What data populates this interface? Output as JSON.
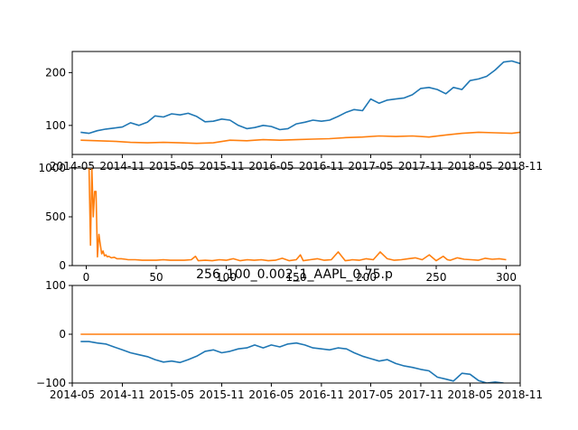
{
  "colors": {
    "series1": "#1f77b4",
    "series2": "#ff7f0e"
  },
  "chart_data": [
    {
      "type": "line",
      "x_type": "date",
      "xlim": [
        "2014-05-01",
        "2018-11-01"
      ],
      "ylim": [
        45,
        240
      ],
      "xticks": [
        "2014-05",
        "2014-11",
        "2015-05",
        "2015-11",
        "2016-05",
        "2016-11",
        "2017-05",
        "2017-11",
        "2018-05",
        "2018-11"
      ],
      "yticks": [
        100,
        200
      ],
      "grid": false,
      "series": [
        {
          "color": "#1f77b4",
          "x": [
            "2014-06-01",
            "2014-07-01",
            "2014-08-01",
            "2014-09-01",
            "2014-10-01",
            "2014-11-01",
            "2014-12-01",
            "2015-01-01",
            "2015-02-01",
            "2015-03-01",
            "2015-04-01",
            "2015-05-01",
            "2015-06-01",
            "2015-07-01",
            "2015-08-01",
            "2015-09-01",
            "2015-10-01",
            "2015-11-01",
            "2015-12-01",
            "2016-01-01",
            "2016-02-01",
            "2016-03-01",
            "2016-04-01",
            "2016-05-01",
            "2016-06-01",
            "2016-07-01",
            "2016-08-01",
            "2016-09-01",
            "2016-10-01",
            "2016-11-01",
            "2016-12-01",
            "2017-01-01",
            "2017-02-01",
            "2017-03-01",
            "2017-04-01",
            "2017-05-01",
            "2017-06-01",
            "2017-07-01",
            "2017-08-01",
            "2017-09-01",
            "2017-10-01",
            "2017-11-01",
            "2017-12-01",
            "2018-01-01",
            "2018-02-01",
            "2018-03-01",
            "2018-04-01",
            "2018-05-01",
            "2018-06-01",
            "2018-07-01",
            "2018-08-01",
            "2018-09-01",
            "2018-10-01",
            "2018-11-01"
          ],
          "y": [
            87,
            85,
            90,
            93,
            95,
            97,
            105,
            100,
            106,
            118,
            116,
            122,
            120,
            123,
            117,
            107,
            108,
            112,
            110,
            100,
            94,
            96,
            100,
            98,
            92,
            94,
            103,
            106,
            110,
            108,
            110,
            117,
            125,
            130,
            128,
            150,
            142,
            148,
            150,
            152,
            158,
            170,
            172,
            168,
            160,
            172,
            168,
            185,
            188,
            193,
            205,
            220,
            222,
            217
          ]
        },
        {
          "color": "#ff7f0e",
          "x": [
            "2014-06-01",
            "2014-08-01",
            "2014-10-01",
            "2014-12-01",
            "2015-02-01",
            "2015-04-01",
            "2015-06-01",
            "2015-08-01",
            "2015-10-01",
            "2015-12-01",
            "2016-02-01",
            "2016-04-01",
            "2016-06-01",
            "2016-08-01",
            "2016-10-01",
            "2016-12-01",
            "2017-02-01",
            "2017-04-01",
            "2017-06-01",
            "2017-08-01",
            "2017-10-01",
            "2017-12-01",
            "2018-02-01",
            "2018-04-01",
            "2018-06-01",
            "2018-08-01",
            "2018-10-01",
            "2018-11-01"
          ],
          "y": [
            72,
            71,
            70,
            68,
            67,
            68,
            67,
            66,
            67,
            72,
            71,
            73,
            72,
            73,
            74,
            75,
            77,
            78,
            80,
            79,
            80,
            78,
            82,
            85,
            87,
            86,
            85,
            87
          ]
        }
      ]
    },
    {
      "type": "line",
      "xlim": [
        -10,
        310
      ],
      "ylim": [
        0,
        1000
      ],
      "xticks": [
        0,
        50,
        100,
        150,
        200,
        250,
        300
      ],
      "yticks": [
        0,
        500,
        1000
      ],
      "grid": false,
      "series": [
        {
          "color": "#ff7f0e",
          "x": [
            0,
            1,
            2,
            3,
            4,
            5,
            6,
            7,
            8,
            9,
            10,
            11,
            12,
            13,
            14,
            15,
            16,
            18,
            20,
            22,
            25,
            28,
            30,
            35,
            40,
            45,
            50,
            55,
            60,
            65,
            70,
            75,
            78,
            80,
            85,
            90,
            95,
            100,
            105,
            110,
            115,
            120,
            125,
            130,
            135,
            140,
            145,
            150,
            153,
            155,
            160,
            165,
            170,
            175,
            180,
            185,
            188,
            190,
            195,
            200,
            205,
            210,
            215,
            220,
            225,
            230,
            235,
            240,
            245,
            250,
            255,
            258,
            260,
            265,
            270,
            275,
            280,
            285,
            290,
            295,
            300
          ],
          "y": [
            1000,
            1000,
            1000,
            210,
            1000,
            500,
            760,
            760,
            90,
            320,
            220,
            120,
            150,
            100,
            110,
            90,
            95,
            80,
            85,
            70,
            70,
            65,
            60,
            60,
            55,
            55,
            55,
            60,
            55,
            55,
            55,
            60,
            95,
            50,
            55,
            50,
            60,
            55,
            70,
            50,
            60,
            55,
            60,
            50,
            55,
            75,
            50,
            60,
            110,
            50,
            60,
            70,
            55,
            60,
            140,
            50,
            55,
            60,
            55,
            70,
            60,
            140,
            70,
            55,
            60,
            70,
            80,
            60,
            110,
            50,
            95,
            60,
            55,
            80,
            65,
            60,
            55,
            75,
            65,
            70,
            60
          ]
        }
      ]
    },
    {
      "type": "line",
      "x_type": "date",
      "xlim": [
        "2014-05-01",
        "2018-11-01"
      ],
      "ylim": [
        -100,
        100
      ],
      "xticks": [
        "2014-05",
        "2014-11",
        "2015-05",
        "2015-11",
        "2016-05",
        "2016-11",
        "2017-05",
        "2017-11",
        "2018-05",
        "2018-11"
      ],
      "yticks": [
        -100,
        0,
        100
      ],
      "grid": false,
      "series": [
        {
          "color": "#1f77b4",
          "x": [
            "2014-06-01",
            "2014-07-01",
            "2014-08-01",
            "2014-09-01",
            "2014-10-01",
            "2014-11-01",
            "2014-12-01",
            "2015-01-01",
            "2015-02-01",
            "2015-03-01",
            "2015-04-01",
            "2015-05-01",
            "2015-06-01",
            "2015-07-01",
            "2015-08-01",
            "2015-09-01",
            "2015-10-01",
            "2015-11-01",
            "2015-12-01",
            "2016-01-01",
            "2016-02-01",
            "2016-03-01",
            "2016-04-01",
            "2016-05-01",
            "2016-06-01",
            "2016-07-01",
            "2016-08-01",
            "2016-09-01",
            "2016-10-01",
            "2016-11-01",
            "2016-12-01",
            "2017-01-01",
            "2017-02-01",
            "2017-03-01",
            "2017-04-01",
            "2017-05-01",
            "2017-06-01",
            "2017-07-01",
            "2017-08-01",
            "2017-09-01",
            "2017-10-01",
            "2017-11-01",
            "2017-12-01",
            "2018-01-01",
            "2018-02-01",
            "2018-03-01",
            "2018-04-01",
            "2018-05-01",
            "2018-06-01",
            "2018-07-01",
            "2018-08-01",
            "2018-09-01"
          ],
          "y": [
            -15,
            -15,
            -18,
            -20,
            -26,
            -32,
            -38,
            -42,
            -46,
            -52,
            -57,
            -55,
            -58,
            -52,
            -45,
            -35,
            -32,
            -38,
            -35,
            -30,
            -28,
            -22,
            -28,
            -22,
            -26,
            -20,
            -18,
            -22,
            -28,
            -30,
            -32,
            -28,
            -30,
            -38,
            -45,
            -50,
            -55,
            -52,
            -60,
            -65,
            -68,
            -72,
            -75,
            -88,
            -92,
            -96,
            -80,
            -82,
            -95,
            -100,
            -98,
            -100
          ]
        },
        {
          "color": "#ff7f0e",
          "x": [
            "2014-06-01",
            "2018-11-01"
          ],
          "y": [
            0,
            0
          ]
        }
      ]
    }
  ],
  "overlay_title": "256_100_0.002_1_AAPL_0.75.p"
}
